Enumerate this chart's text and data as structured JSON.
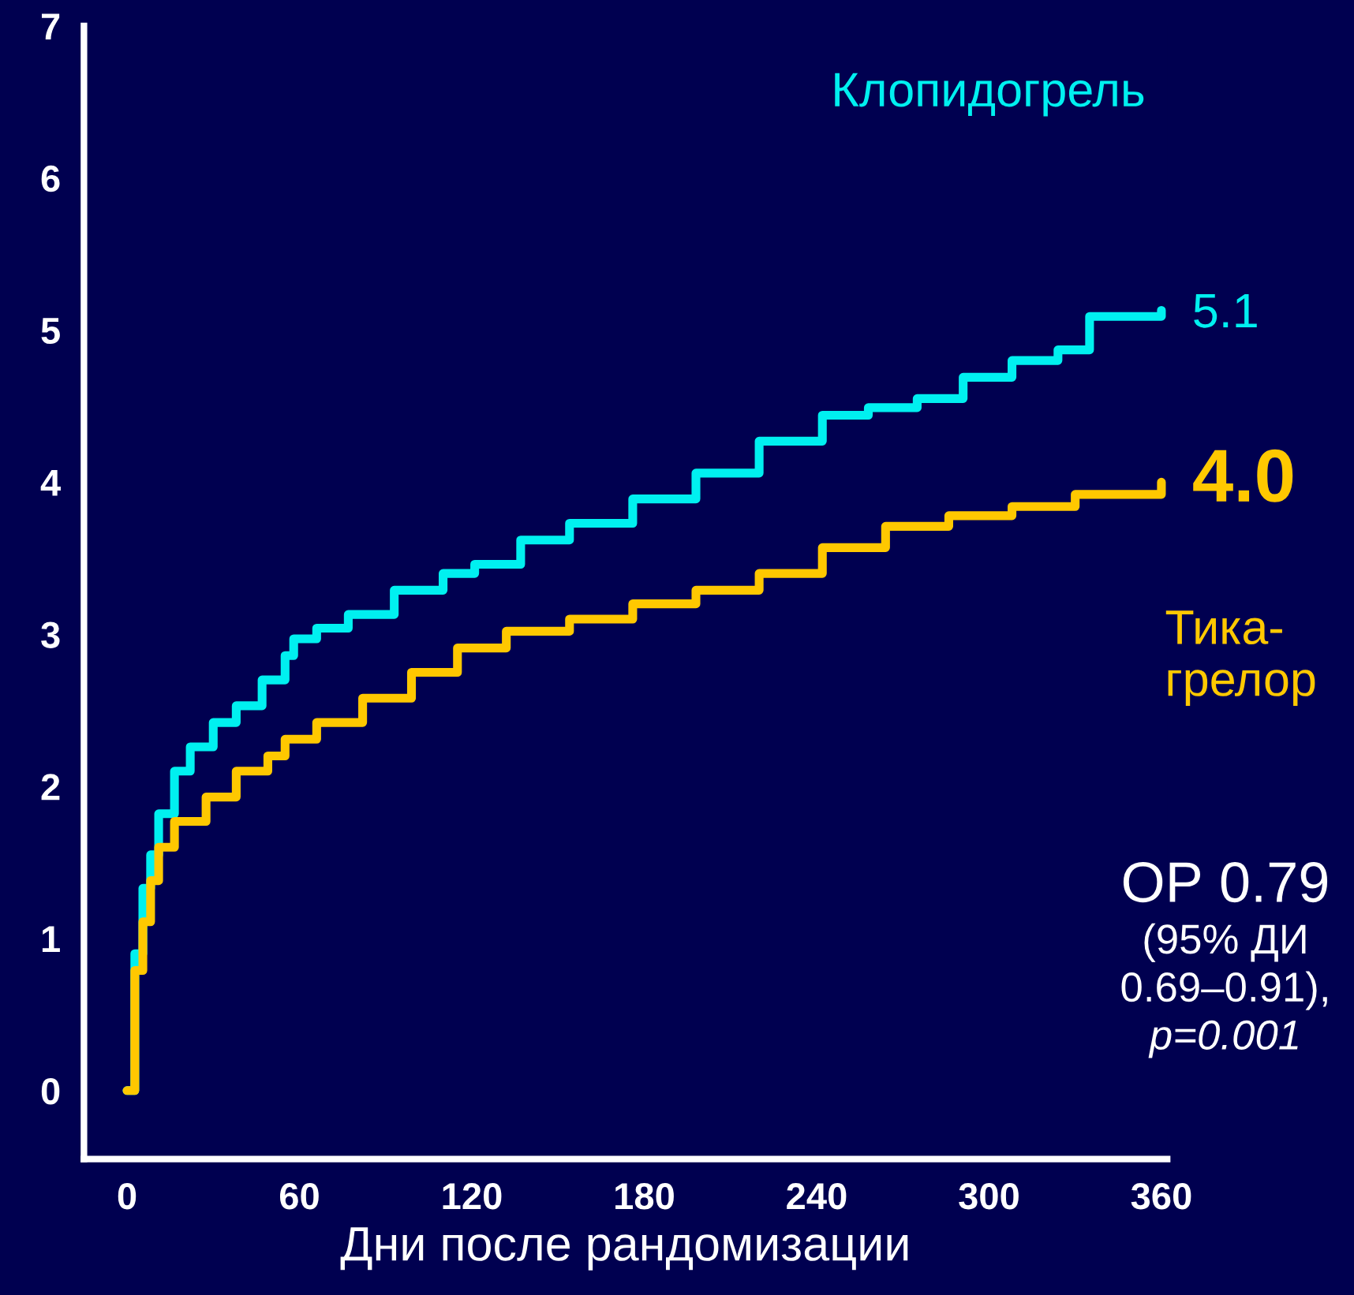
{
  "chart_data": {
    "type": "step",
    "xlabel": "Дни после рандомизации",
    "xlim": [
      -15,
      362
    ],
    "ylim": [
      -0.45,
      7
    ],
    "xticks": [
      0,
      60,
      120,
      180,
      240,
      300,
      360
    ],
    "yticks": [
      0,
      1,
      2,
      3,
      4,
      5,
      6,
      7
    ],
    "grid": false,
    "legend": false,
    "series": [
      {
        "name": "Клопидогрель",
        "color": "#00f0f0",
        "x": [
          0,
          2.7,
          5.5,
          8.2,
          11,
          16.5,
          22,
          30,
          38,
          47,
          55,
          58,
          66,
          77,
          93,
          110,
          121,
          137,
          154,
          176,
          198,
          220,
          242,
          258,
          275,
          291,
          308,
          324,
          335,
          360
        ],
        "values": [
          0,
          0.9,
          1.33,
          1.55,
          1.82,
          2.1,
          2.26,
          2.42,
          2.53,
          2.7,
          2.86,
          2.97,
          3.04,
          3.13,
          3.29,
          3.4,
          3.46,
          3.62,
          3.73,
          3.89,
          4.06,
          4.27,
          4.44,
          4.49,
          4.55,
          4.69,
          4.8,
          4.87,
          5.09,
          5.13
        ]
      },
      {
        "name": "Тика-\nгрелор",
        "color": "#ffc800",
        "x": [
          0,
          2.7,
          5.5,
          8.2,
          11,
          16.5,
          27.5,
          38,
          49,
          55,
          66,
          82,
          99,
          115,
          132,
          154,
          176,
          198,
          220,
          242,
          264,
          286,
          308,
          330,
          360
        ],
        "values": [
          0,
          0.79,
          1.11,
          1.38,
          1.6,
          1.77,
          1.93,
          2.1,
          2.2,
          2.31,
          2.42,
          2.58,
          2.75,
          2.91,
          3.02,
          3.1,
          3.2,
          3.29,
          3.4,
          3.57,
          3.71,
          3.78,
          3.84,
          3.92,
          4.0
        ]
      }
    ],
    "annotations": [
      {
        "text": "5.1",
        "x": 360,
        "y": 5.1
      },
      {
        "text": "4.0",
        "x": 360,
        "y": 4.0
      },
      "ОР 0.79",
      "(95% ДИ",
      "0.69–0.91),",
      "p=0.001"
    ]
  }
}
